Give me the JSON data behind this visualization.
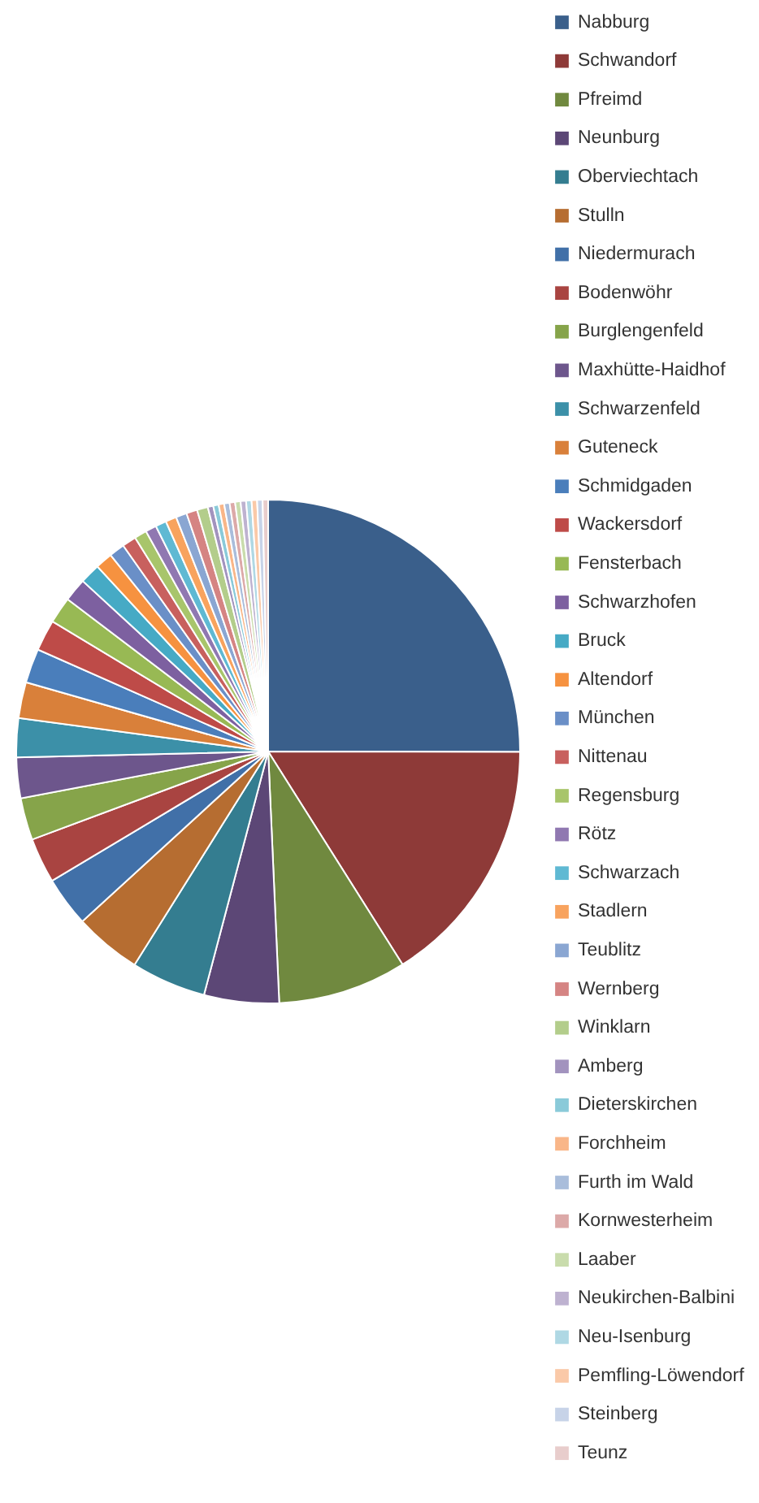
{
  "chart_data": {
    "type": "pie",
    "legend": "right",
    "categories": [
      "Nabburg",
      "Schwandorf",
      "Pfreimd",
      "Neunburg",
      "Oberviechtach",
      "Stulln",
      "Niedermurach",
      "Bodenwöhr",
      "Burglengenfeld",
      "Maxhütte-Haidhof",
      "Schwarzenfeld",
      "Guteneck",
      "Schmidgaden",
      "Wackersdorf",
      "Fensterbach",
      "Schwarzhofen",
      "Bruck",
      "Altendorf",
      "München",
      "Nittenau",
      "Regensburg",
      "Rötz",
      "Schwarzach",
      "Stadlern",
      "Teublitz",
      "Wernberg",
      "Winklarn",
      "Amberg",
      "Dieterskirchen",
      "Forchheim",
      "Furth im Wald",
      "Kornwesterheim",
      "Laaber",
      "Neukirchen-Balbini",
      "Neu-Isenburg",
      "Pemfling-Löwendorf",
      "Steinberg",
      "Teunz"
    ],
    "values": [
      25,
      16,
      8.25,
      4.8,
      4.8,
      4.3,
      3.2,
      2.9,
      2.7,
      2.6,
      2.5,
      2.3,
      2.2,
      2.0,
      1.7,
      1.5,
      1.3,
      1.1,
      1.0,
      0.9,
      0.8,
      0.7,
      0.7,
      0.7,
      0.7,
      0.7,
      0.7,
      0.35,
      0.35,
      0.35,
      0.35,
      0.35,
      0.35,
      0.35,
      0.35,
      0.35,
      0.35,
      0.35
    ],
    "colors": [
      "#3a5f8b",
      "#8e3a38",
      "#70893f",
      "#5c4776",
      "#347d90",
      "#b66d31",
      "#4170a8",
      "#a94441",
      "#86a44a",
      "#6d568c",
      "#3c90a8",
      "#d9803a",
      "#4a7ebb",
      "#be4b48",
      "#98b954",
      "#7d60a0",
      "#46aac5",
      "#f69240",
      "#6a8fc7",
      "#c8605e",
      "#a8c56b",
      "#9078b1",
      "#5fb9d3",
      "#f8a35e",
      "#8aa6d2",
      "#d58483",
      "#b3cd8b",
      "#a293be",
      "#8acad9",
      "#f9b688",
      "#a9bddb",
      "#dca9a8",
      "#c9dcac",
      "#beb2d0",
      "#afd8e4",
      "#fac9a8",
      "#c7d3e8",
      "#e8cdcc"
    ]
  }
}
